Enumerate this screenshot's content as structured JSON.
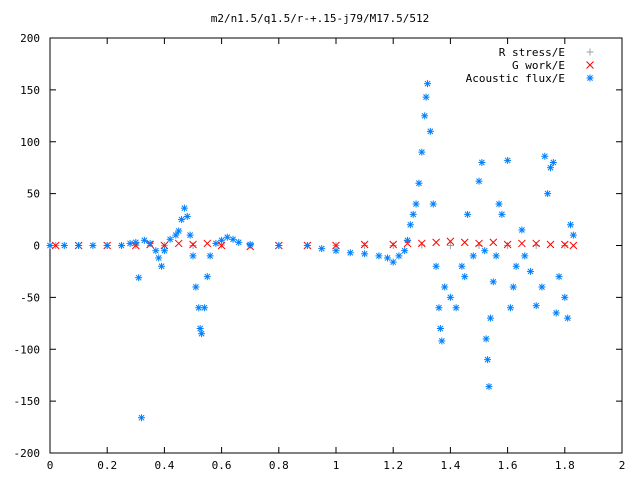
{
  "chart_data": {
    "type": "scatter",
    "title": "m2/n1.5/q1.5/r-+.15-j79/M17.5/512",
    "xlabel": "",
    "ylabel": "",
    "xlim": [
      0,
      2
    ],
    "ylim": [
      -200,
      200
    ],
    "x_ticks": [
      0,
      0.2,
      0.4,
      0.6,
      0.8,
      1,
      1.2,
      1.4,
      1.6,
      1.8,
      2
    ],
    "x_tick_labels": [
      "0",
      "0.2",
      "0.4",
      "0.6",
      "0.8",
      "1",
      "1.2",
      "1.4",
      "1.6",
      "1.8",
      "2"
    ],
    "y_ticks": [
      -200,
      -150,
      -100,
      -50,
      0,
      50,
      100,
      150,
      200
    ],
    "y_tick_labels": [
      "-200",
      "-150",
      "-100",
      "-50",
      "0",
      "50",
      "100",
      "150",
      "200"
    ],
    "grid": false,
    "legend_position": "top-right",
    "series": [
      {
        "name": "R stress/E",
        "marker": "plus",
        "color": "#a0a0a0",
        "points": [
          [
            0.02,
            0
          ],
          [
            0.1,
            0
          ],
          [
            0.2,
            0
          ],
          [
            0.3,
            0
          ],
          [
            0.4,
            0
          ],
          [
            0.5,
            0
          ],
          [
            0.6,
            0.5
          ],
          [
            0.7,
            0
          ],
          [
            0.8,
            0
          ],
          [
            0.9,
            0
          ],
          [
            1.0,
            0
          ],
          [
            1.1,
            0
          ],
          [
            1.2,
            0
          ],
          [
            1.3,
            0.5
          ],
          [
            1.4,
            0
          ],
          [
            1.5,
            0
          ],
          [
            1.6,
            0
          ],
          [
            1.7,
            0
          ],
          [
            1.8,
            0
          ]
        ]
      },
      {
        "name": "G work/E",
        "marker": "cross",
        "color": "#ff0000",
        "points": [
          [
            0.02,
            0
          ],
          [
            0.1,
            0
          ],
          [
            0.2,
            0
          ],
          [
            0.3,
            0
          ],
          [
            0.35,
            1
          ],
          [
            0.4,
            0
          ],
          [
            0.45,
            2
          ],
          [
            0.5,
            1
          ],
          [
            0.55,
            2
          ],
          [
            0.6,
            0
          ],
          [
            0.7,
            -1
          ],
          [
            0.8,
            0
          ],
          [
            0.9,
            0
          ],
          [
            1.0,
            0
          ],
          [
            1.1,
            1
          ],
          [
            1.2,
            1
          ],
          [
            1.25,
            2
          ],
          [
            1.3,
            2
          ],
          [
            1.35,
            3
          ],
          [
            1.4,
            4
          ],
          [
            1.45,
            3
          ],
          [
            1.5,
            2
          ],
          [
            1.55,
            3
          ],
          [
            1.6,
            1
          ],
          [
            1.65,
            2
          ],
          [
            1.7,
            2
          ],
          [
            1.75,
            1
          ],
          [
            1.8,
            1
          ],
          [
            1.83,
            0
          ]
        ]
      },
      {
        "name": "Acoustic flux/E",
        "marker": "star",
        "color": "#0080ff",
        "points": [
          [
            0.0,
            0
          ],
          [
            0.05,
            0
          ],
          [
            0.1,
            0
          ],
          [
            0.15,
            0
          ],
          [
            0.2,
            0
          ],
          [
            0.25,
            0
          ],
          [
            0.28,
            2
          ],
          [
            0.3,
            3
          ],
          [
            0.31,
            -31
          ],
          [
            0.32,
            -166
          ],
          [
            0.33,
            5
          ],
          [
            0.35,
            2
          ],
          [
            0.37,
            -5
          ],
          [
            0.38,
            -12
          ],
          [
            0.39,
            -20
          ],
          [
            0.4,
            -5
          ],
          [
            0.42,
            6
          ],
          [
            0.44,
            10
          ],
          [
            0.45,
            14
          ],
          [
            0.46,
            25
          ],
          [
            0.47,
            36
          ],
          [
            0.48,
            28
          ],
          [
            0.49,
            10
          ],
          [
            0.5,
            -10
          ],
          [
            0.51,
            -40
          ],
          [
            0.52,
            -60
          ],
          [
            0.525,
            -80
          ],
          [
            0.53,
            -85
          ],
          [
            0.54,
            -60
          ],
          [
            0.55,
            -30
          ],
          [
            0.56,
            -10
          ],
          [
            0.58,
            2
          ],
          [
            0.6,
            5
          ],
          [
            0.62,
            8
          ],
          [
            0.64,
            6
          ],
          [
            0.66,
            3
          ],
          [
            0.7,
            1
          ],
          [
            0.8,
            0
          ],
          [
            0.9,
            0
          ],
          [
            0.95,
            -3
          ],
          [
            1.0,
            -5
          ],
          [
            1.05,
            -7
          ],
          [
            1.1,
            -8
          ],
          [
            1.15,
            -10
          ],
          [
            1.18,
            -12
          ],
          [
            1.2,
            -16
          ],
          [
            1.22,
            -10
          ],
          [
            1.24,
            -5
          ],
          [
            1.25,
            5
          ],
          [
            1.26,
            20
          ],
          [
            1.27,
            30
          ],
          [
            1.28,
            40
          ],
          [
            1.29,
            60
          ],
          [
            1.3,
            90
          ],
          [
            1.31,
            125
          ],
          [
            1.315,
            143
          ],
          [
            1.32,
            156
          ],
          [
            1.33,
            110
          ],
          [
            1.34,
            40
          ],
          [
            1.35,
            -20
          ],
          [
            1.36,
            -60
          ],
          [
            1.365,
            -80
          ],
          [
            1.37,
            -92
          ],
          [
            1.38,
            -40
          ],
          [
            1.4,
            -50
          ],
          [
            1.42,
            -60
          ],
          [
            1.44,
            -20
          ],
          [
            1.45,
            -30
          ],
          [
            1.46,
            30
          ],
          [
            1.48,
            -10
          ],
          [
            1.5,
            62
          ],
          [
            1.51,
            80
          ],
          [
            1.52,
            -5
          ],
          [
            1.525,
            -90
          ],
          [
            1.53,
            -110
          ],
          [
            1.535,
            -136
          ],
          [
            1.54,
            -70
          ],
          [
            1.55,
            -35
          ],
          [
            1.56,
            -10
          ],
          [
            1.57,
            40
          ],
          [
            1.58,
            30
          ],
          [
            1.6,
            82
          ],
          [
            1.61,
            -60
          ],
          [
            1.62,
            -40
          ],
          [
            1.63,
            -20
          ],
          [
            1.65,
            15
          ],
          [
            1.66,
            -10
          ],
          [
            1.68,
            -25
          ],
          [
            1.7,
            -58
          ],
          [
            1.72,
            -40
          ],
          [
            1.73,
            86
          ],
          [
            1.74,
            50
          ],
          [
            1.75,
            75
          ],
          [
            1.76,
            80
          ],
          [
            1.77,
            -65
          ],
          [
            1.78,
            -30
          ],
          [
            1.8,
            -50
          ],
          [
            1.81,
            -70
          ],
          [
            1.82,
            20
          ],
          [
            1.83,
            10
          ]
        ]
      }
    ]
  }
}
